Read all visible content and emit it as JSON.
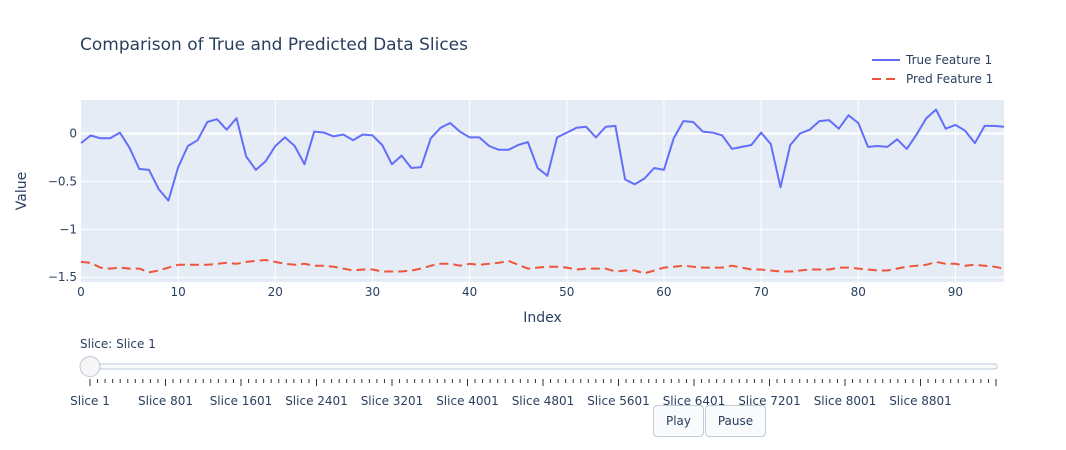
{
  "chart_data": {
    "type": "line",
    "title": "Comparison of True and Predicted Data Slices",
    "xlabel": "Index",
    "ylabel": "Value",
    "xlim": [
      0,
      95
    ],
    "ylim": [
      -1.55,
      0.35
    ],
    "x_ticks": [
      0,
      10,
      20,
      30,
      40,
      50,
      60,
      70,
      80,
      90
    ],
    "y_ticks": [
      0,
      -0.5,
      -1,
      -1.5
    ],
    "y_tick_labels": [
      "0",
      "−0.5",
      "−1",
      "−1.5"
    ],
    "grid": true,
    "legend_position": "top-right",
    "series": [
      {
        "name": "True Feature 1",
        "color": "#636efa",
        "dash": "solid",
        "values": [
          -0.1,
          -0.02,
          -0.05,
          -0.05,
          0.01,
          -0.15,
          -0.37,
          -0.38,
          -0.58,
          -0.7,
          -0.35,
          -0.13,
          -0.07,
          0.12,
          0.15,
          0.04,
          0.16,
          -0.24,
          -0.38,
          -0.29,
          -0.13,
          -0.04,
          -0.13,
          -0.32,
          0.02,
          0.01,
          -0.03,
          -0.01,
          -0.07,
          -0.01,
          -0.02,
          -0.12,
          -0.32,
          -0.23,
          -0.36,
          -0.35,
          -0.05,
          0.06,
          0.11,
          0.02,
          -0.04,
          -0.04,
          -0.13,
          -0.17,
          -0.17,
          -0.12,
          -0.09,
          -0.36,
          -0.44,
          -0.04,
          0.01,
          0.06,
          0.07,
          -0.04,
          0.07,
          0.08,
          -0.48,
          -0.53,
          -0.47,
          -0.36,
          -0.38,
          -0.05,
          0.13,
          0.12,
          0.02,
          0.01,
          -0.02,
          -0.16,
          -0.14,
          -0.12,
          0.01,
          -0.11,
          -0.56,
          -0.12,
          0.0,
          0.04,
          0.13,
          0.14,
          0.05,
          0.19,
          0.11,
          -0.14,
          -0.13,
          -0.14,
          -0.06,
          -0.16,
          -0.01,
          0.16,
          0.25,
          0.05,
          0.09,
          0.03,
          -0.1,
          0.08,
          0.08,
          0.07
        ]
      },
      {
        "name": "Pred Feature 1",
        "color": "#ef553b",
        "dash": "dash",
        "values": [
          -1.34,
          -1.35,
          -1.4,
          -1.41,
          -1.4,
          -1.41,
          -1.41,
          -1.45,
          -1.43,
          -1.4,
          -1.37,
          -1.37,
          -1.37,
          -1.37,
          -1.36,
          -1.35,
          -1.36,
          -1.34,
          -1.33,
          -1.32,
          -1.34,
          -1.36,
          -1.37,
          -1.36,
          -1.38,
          -1.38,
          -1.39,
          -1.41,
          -1.43,
          -1.42,
          -1.42,
          -1.44,
          -1.44,
          -1.44,
          -1.43,
          -1.41,
          -1.38,
          -1.36,
          -1.36,
          -1.38,
          -1.36,
          -1.37,
          -1.36,
          -1.35,
          -1.33,
          -1.37,
          -1.41,
          -1.4,
          -1.39,
          -1.39,
          -1.4,
          -1.42,
          -1.41,
          -1.41,
          -1.41,
          -1.44,
          -1.43,
          -1.43,
          -1.46,
          -1.43,
          -1.4,
          -1.39,
          -1.38,
          -1.39,
          -1.4,
          -1.4,
          -1.4,
          -1.38,
          -1.4,
          -1.42,
          -1.42,
          -1.43,
          -1.44,
          -1.44,
          -1.43,
          -1.42,
          -1.42,
          -1.42,
          -1.4,
          -1.4,
          -1.41,
          -1.42,
          -1.43,
          -1.43,
          -1.41,
          -1.39,
          -1.38,
          -1.37,
          -1.34,
          -1.36,
          -1.36,
          -1.38,
          -1.37,
          -1.38,
          -1.39,
          -1.41
        ]
      }
    ]
  },
  "slider": {
    "current_label": "Slice: Slice 1",
    "step_count": 121,
    "tick_labels": [
      "Slice 1",
      "Slice 801",
      "Slice 1601",
      "Slice 2401",
      "Slice 3201",
      "Slice 4001",
      "Slice 4801",
      "Slice 5601",
      "Slice 6401",
      "Slice 7201",
      "Slice 8001",
      "Slice 8801"
    ],
    "value_fraction": 0
  },
  "controls": {
    "play_label": "Play",
    "pause_label": "Pause"
  }
}
